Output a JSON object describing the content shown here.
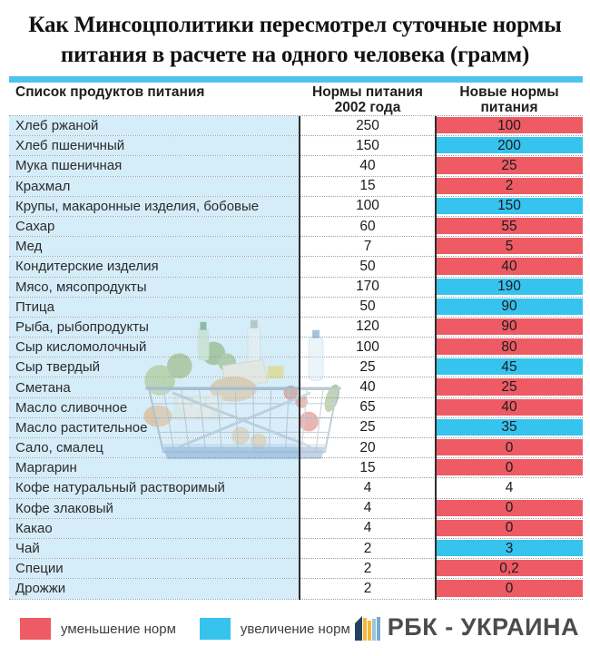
{
  "title": "Как Минсоцполитики пересмотрел суточные нормы\nпитания в расчете на одного человека (грамм)",
  "chart_data": {
    "type": "table",
    "title": "Как Минсоцполитики пересмотрел суточные нормы питания в расчете на одного человека (грамм)",
    "unit": "грамм",
    "columns": [
      "Список продуктов питания",
      "Нормы питания\n2002 года",
      "Новые нормы\nпитания"
    ],
    "rows": [
      {
        "product": "Хлеб ржаной",
        "norm_2002": "250",
        "norm_new": "100",
        "change": "decrease"
      },
      {
        "product": "Хлеб пшеничный",
        "norm_2002": "150",
        "norm_new": "200",
        "change": "increase"
      },
      {
        "product": "Мука пшеничная",
        "norm_2002": "40",
        "norm_new": "25",
        "change": "decrease"
      },
      {
        "product": "Крахмал",
        "norm_2002": "15",
        "norm_new": "2",
        "change": "decrease"
      },
      {
        "product": "Крупы, макаронные изделия, бобовые",
        "norm_2002": "100",
        "norm_new": "150",
        "change": "increase"
      },
      {
        "product": "Сахар",
        "norm_2002": "60",
        "norm_new": "55",
        "change": "decrease"
      },
      {
        "product": "Мед",
        "norm_2002": "7",
        "norm_new": "5",
        "change": "decrease"
      },
      {
        "product": "Кондитерские изделия",
        "norm_2002": "50",
        "norm_new": "40",
        "change": "decrease"
      },
      {
        "product": "Мясо, мясопродукты",
        "norm_2002": "170",
        "norm_new": "190",
        "change": "increase"
      },
      {
        "product": "Птица",
        "norm_2002": "50",
        "norm_new": "90",
        "change": "increase"
      },
      {
        "product": "Рыба, рыбопродукты",
        "norm_2002": "120",
        "norm_new": "90",
        "change": "decrease"
      },
      {
        "product": "Сыр кисломолочный",
        "norm_2002": "100",
        "norm_new": "80",
        "change": "decrease"
      },
      {
        "product": "Сыр твердый",
        "norm_2002": "25",
        "norm_new": "45",
        "change": "increase"
      },
      {
        "product": "Сметана",
        "norm_2002": "40",
        "norm_new": "25",
        "change": "decrease"
      },
      {
        "product": "Масло сливочное",
        "norm_2002": "65",
        "norm_new": "40",
        "change": "decrease"
      },
      {
        "product": "Масло растительное",
        "norm_2002": "25",
        "norm_new": "35",
        "change": "increase"
      },
      {
        "product": "Сало, смалец",
        "norm_2002": "20",
        "norm_new": "0",
        "change": "decrease"
      },
      {
        "product": "Маргарин",
        "norm_2002": "15",
        "norm_new": "0",
        "change": "decrease"
      },
      {
        "product": "Кофе натуральный растворимый",
        "norm_2002": "4",
        "norm_new": "4",
        "change": "none"
      },
      {
        "product": "Кофе злаковый",
        "norm_2002": "4",
        "norm_new": "0",
        "change": "decrease"
      },
      {
        "product": "Какао",
        "norm_2002": "4",
        "norm_new": "0",
        "change": "decrease"
      },
      {
        "product": "Чай",
        "norm_2002": "2",
        "norm_new": "3",
        "change": "increase"
      },
      {
        "product": "Специи",
        "norm_2002": "2",
        "norm_new": "0,2",
        "change": "decrease"
      },
      {
        "product": "Дрожжи",
        "norm_2002": "2",
        "norm_new": "0",
        "change": "decrease"
      }
    ],
    "legend": [
      {
        "label": "уменьшение норм",
        "meaning": "decrease",
        "color": "#ee5b65"
      },
      {
        "label": "увеличение норм",
        "meaning": "increase",
        "color": "#36c3ee"
      }
    ],
    "legend_position": "bottom"
  },
  "branding": {
    "logo_text": "РБК - УКРАИНА"
  },
  "colors": {
    "decrease_red": "#ee5b65",
    "increase_blue": "#36c3ee",
    "product_column_bg": "#d5ecf9",
    "header_accent_bar": "#4fc3ef"
  }
}
